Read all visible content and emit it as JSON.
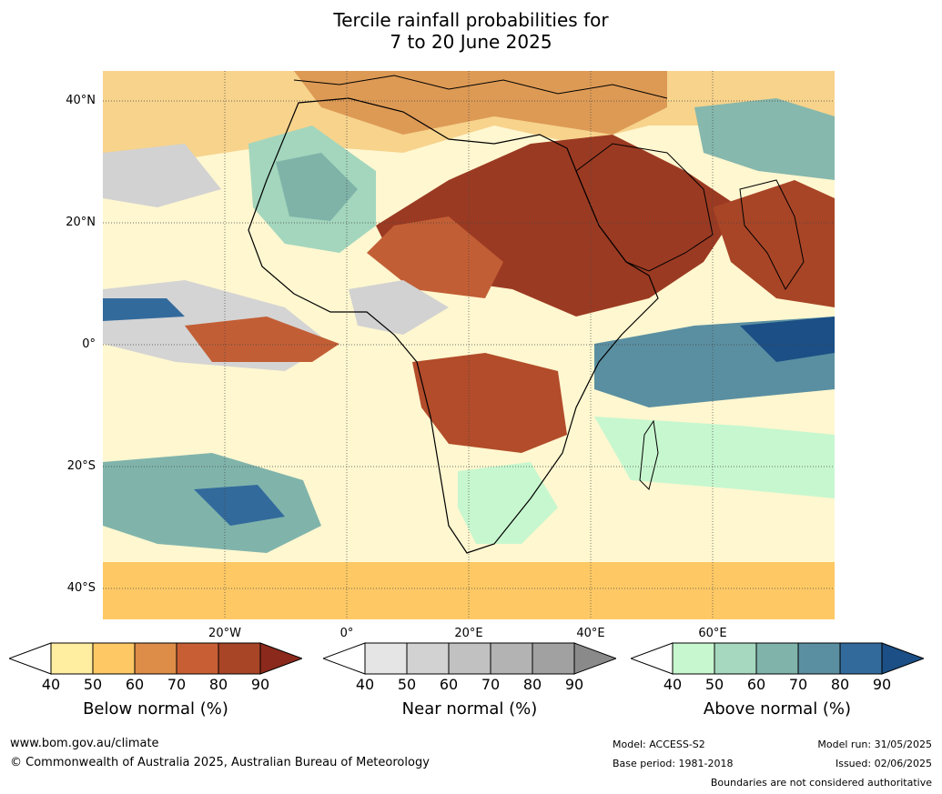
{
  "title": {
    "line1": "Tercile rainfall probabilities for",
    "line2": "7 to 20 June 2025"
  },
  "map": {
    "lat_labels": [
      "40°N",
      "20°N",
      "0°",
      "20°S",
      "40°S"
    ],
    "lon_labels": [
      "20°W",
      "0°",
      "20°E",
      "40°E",
      "60°E"
    ]
  },
  "colorbars": [
    {
      "title": "Below normal (%)",
      "ticks": [
        "40",
        "50",
        "60",
        "70",
        "80",
        "90"
      ],
      "colors": [
        "#ffffff",
        "#ffeda0",
        "#fec965",
        "#dd8d48",
        "#c85f34",
        "#a84526",
        "#8b2a1c"
      ]
    },
    {
      "title": "Near normal (%)",
      "ticks": [
        "40",
        "50",
        "60",
        "70",
        "80",
        "90"
      ],
      "colors": [
        "#ffffff",
        "#e5e5e5",
        "#d2d2d2",
        "#c1c1c1",
        "#b3b3b3",
        "#a1a1a1",
        "#8a8a8a"
      ]
    },
    {
      "title": "Above normal (%)",
      "ticks": [
        "40",
        "50",
        "60",
        "70",
        "80",
        "90"
      ],
      "colors": [
        "#ffffff",
        "#c7f7cf",
        "#a5d8bf",
        "#80b4ab",
        "#5a8fa1",
        "#336a9c",
        "#1b4f85"
      ]
    }
  ],
  "footer": {
    "website": "www.bom.gov.au/climate",
    "copyright": "© Commonwealth of Australia 2025, Australian Bureau of Meteorology",
    "model": "Model: ACCESS-S2",
    "base_period": "Base period: 1981-2018",
    "model_run": "Model run: 31/05/2025",
    "issued": "Issued: 02/06/2025",
    "disclaimer": "Boundaries are not considered authoritative"
  }
}
